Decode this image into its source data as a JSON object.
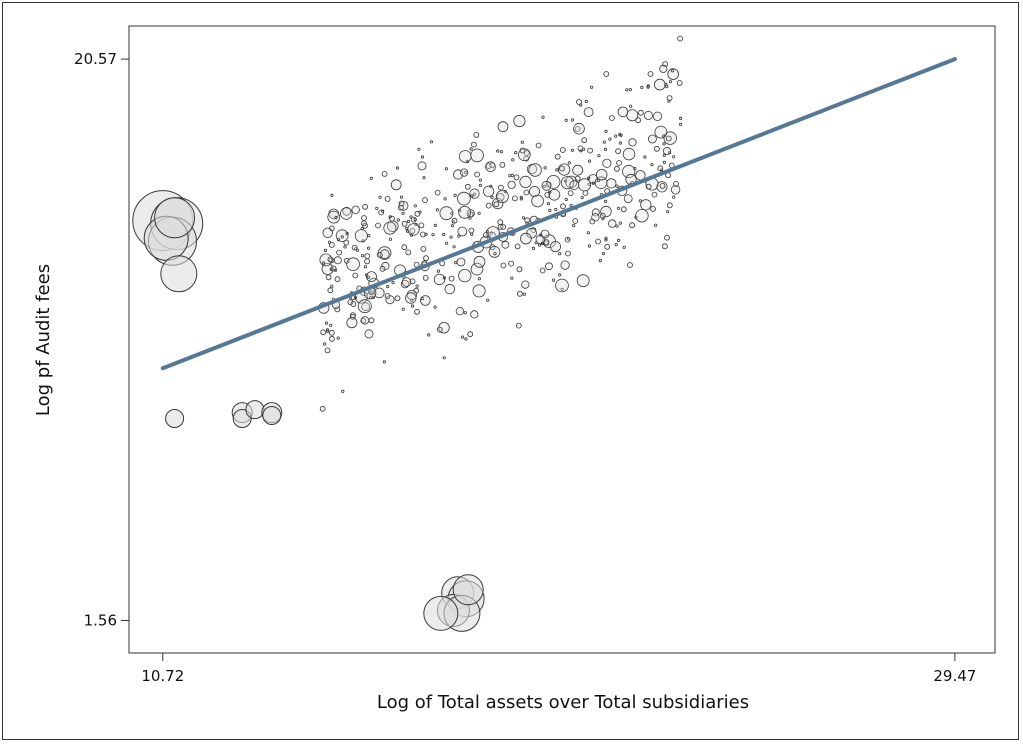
{
  "chart_data": {
    "type": "scatter",
    "title": "",
    "xlabel": "Log of Total assets over Total subsidiaries",
    "ylabel": "Log pf Audit fees",
    "xlim": [
      9.92,
      30.42
    ],
    "ylim": [
      0.46,
      21.69
    ],
    "x_ticks": [
      {
        "value": 10.72,
        "label": "10.72"
      },
      {
        "value": 29.47,
        "label": "29.47"
      }
    ],
    "y_ticks": [
      {
        "value": 20.57,
        "label": "20.57"
      },
      {
        "value": 1.56,
        "label": "1.56"
      }
    ],
    "grid": false,
    "legend": "none",
    "fit_line": {
      "x": [
        10.72,
        29.47
      ],
      "y": [
        10.1,
        20.57
      ],
      "color": "#557896"
    },
    "marker_fill": "#dcdcdc",
    "marker_stroke": "#3a3a3a",
    "large_points": [
      {
        "x": 10.72,
        "y": 15.1,
        "size": 30
      },
      {
        "x": 11.05,
        "y": 15.0,
        "size": 26
      },
      {
        "x": 10.95,
        "y": 14.4,
        "size": 24
      },
      {
        "x": 10.8,
        "y": 14.5,
        "size": 22
      },
      {
        "x": 11.0,
        "y": 15.2,
        "size": 20
      },
      {
        "x": 11.1,
        "y": 13.3,
        "size": 18
      },
      {
        "x": 11.0,
        "y": 8.4,
        "size": 9
      },
      {
        "x": 12.6,
        "y": 8.6,
        "size": 10
      },
      {
        "x": 12.6,
        "y": 8.4,
        "size": 9
      },
      {
        "x": 12.9,
        "y": 8.7,
        "size": 9
      },
      {
        "x": 13.3,
        "y": 8.6,
        "size": 10
      },
      {
        "x": 13.3,
        "y": 8.5,
        "size": 9
      },
      {
        "x": 17.7,
        "y": 2.5,
        "size": 16
      },
      {
        "x": 17.9,
        "y": 2.3,
        "size": 18
      },
      {
        "x": 17.6,
        "y": 1.9,
        "size": 16
      },
      {
        "x": 17.8,
        "y": 1.8,
        "size": 18
      },
      {
        "x": 17.3,
        "y": 1.8,
        "size": 17
      },
      {
        "x": 17.95,
        "y": 2.6,
        "size": 15
      }
    ],
    "cloud": {
      "description_free": true,
      "n": 520,
      "x_range": [
        14.5,
        23.0
      ],
      "slope": 0.56,
      "intercept": 4.7,
      "spread": 3.4
    }
  }
}
